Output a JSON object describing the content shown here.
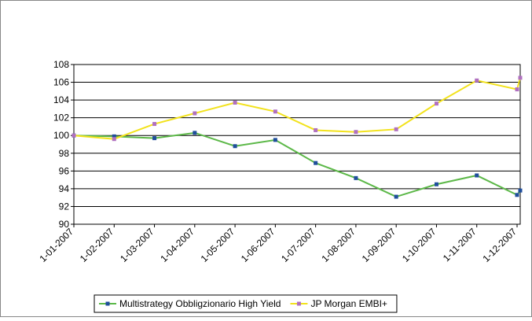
{
  "chart_data": {
    "type": "line",
    "categories": [
      "1-01-2007",
      "1-02-2007",
      "1-03-2007",
      "1-04-2007",
      "1-05-2007",
      "1-06-2007",
      "1-07-2007",
      "1-08-2007",
      "1-09-2007",
      "1-10-2007",
      "1-11-2007",
      "1-12-2007",
      null
    ],
    "series": [
      {
        "name": "Multistrategy Obbligzionario High Yield",
        "color": "#5cb848",
        "marker_color": "#1f4e9c",
        "values": [
          100,
          99.9,
          99.7,
          100.3,
          98.8,
          99.5,
          96.9,
          95.2,
          93.1,
          94.5,
          95.5,
          93.3,
          93.8
        ]
      },
      {
        "name": "JP Morgan EMBI+",
        "color": "#f2e21c",
        "marker_color": "#b070c0",
        "values": [
          100,
          99.6,
          101.3,
          102.5,
          103.7,
          102.7,
          100.6,
          100.4,
          100.7,
          103.6,
          106.2,
          105.2,
          106.5
        ]
      }
    ],
    "ylim": [
      90,
      108
    ],
    "yticks": [
      90,
      92,
      94,
      96,
      98,
      100,
      102,
      104,
      106,
      108
    ],
    "grid": true,
    "legend": "bottom"
  }
}
